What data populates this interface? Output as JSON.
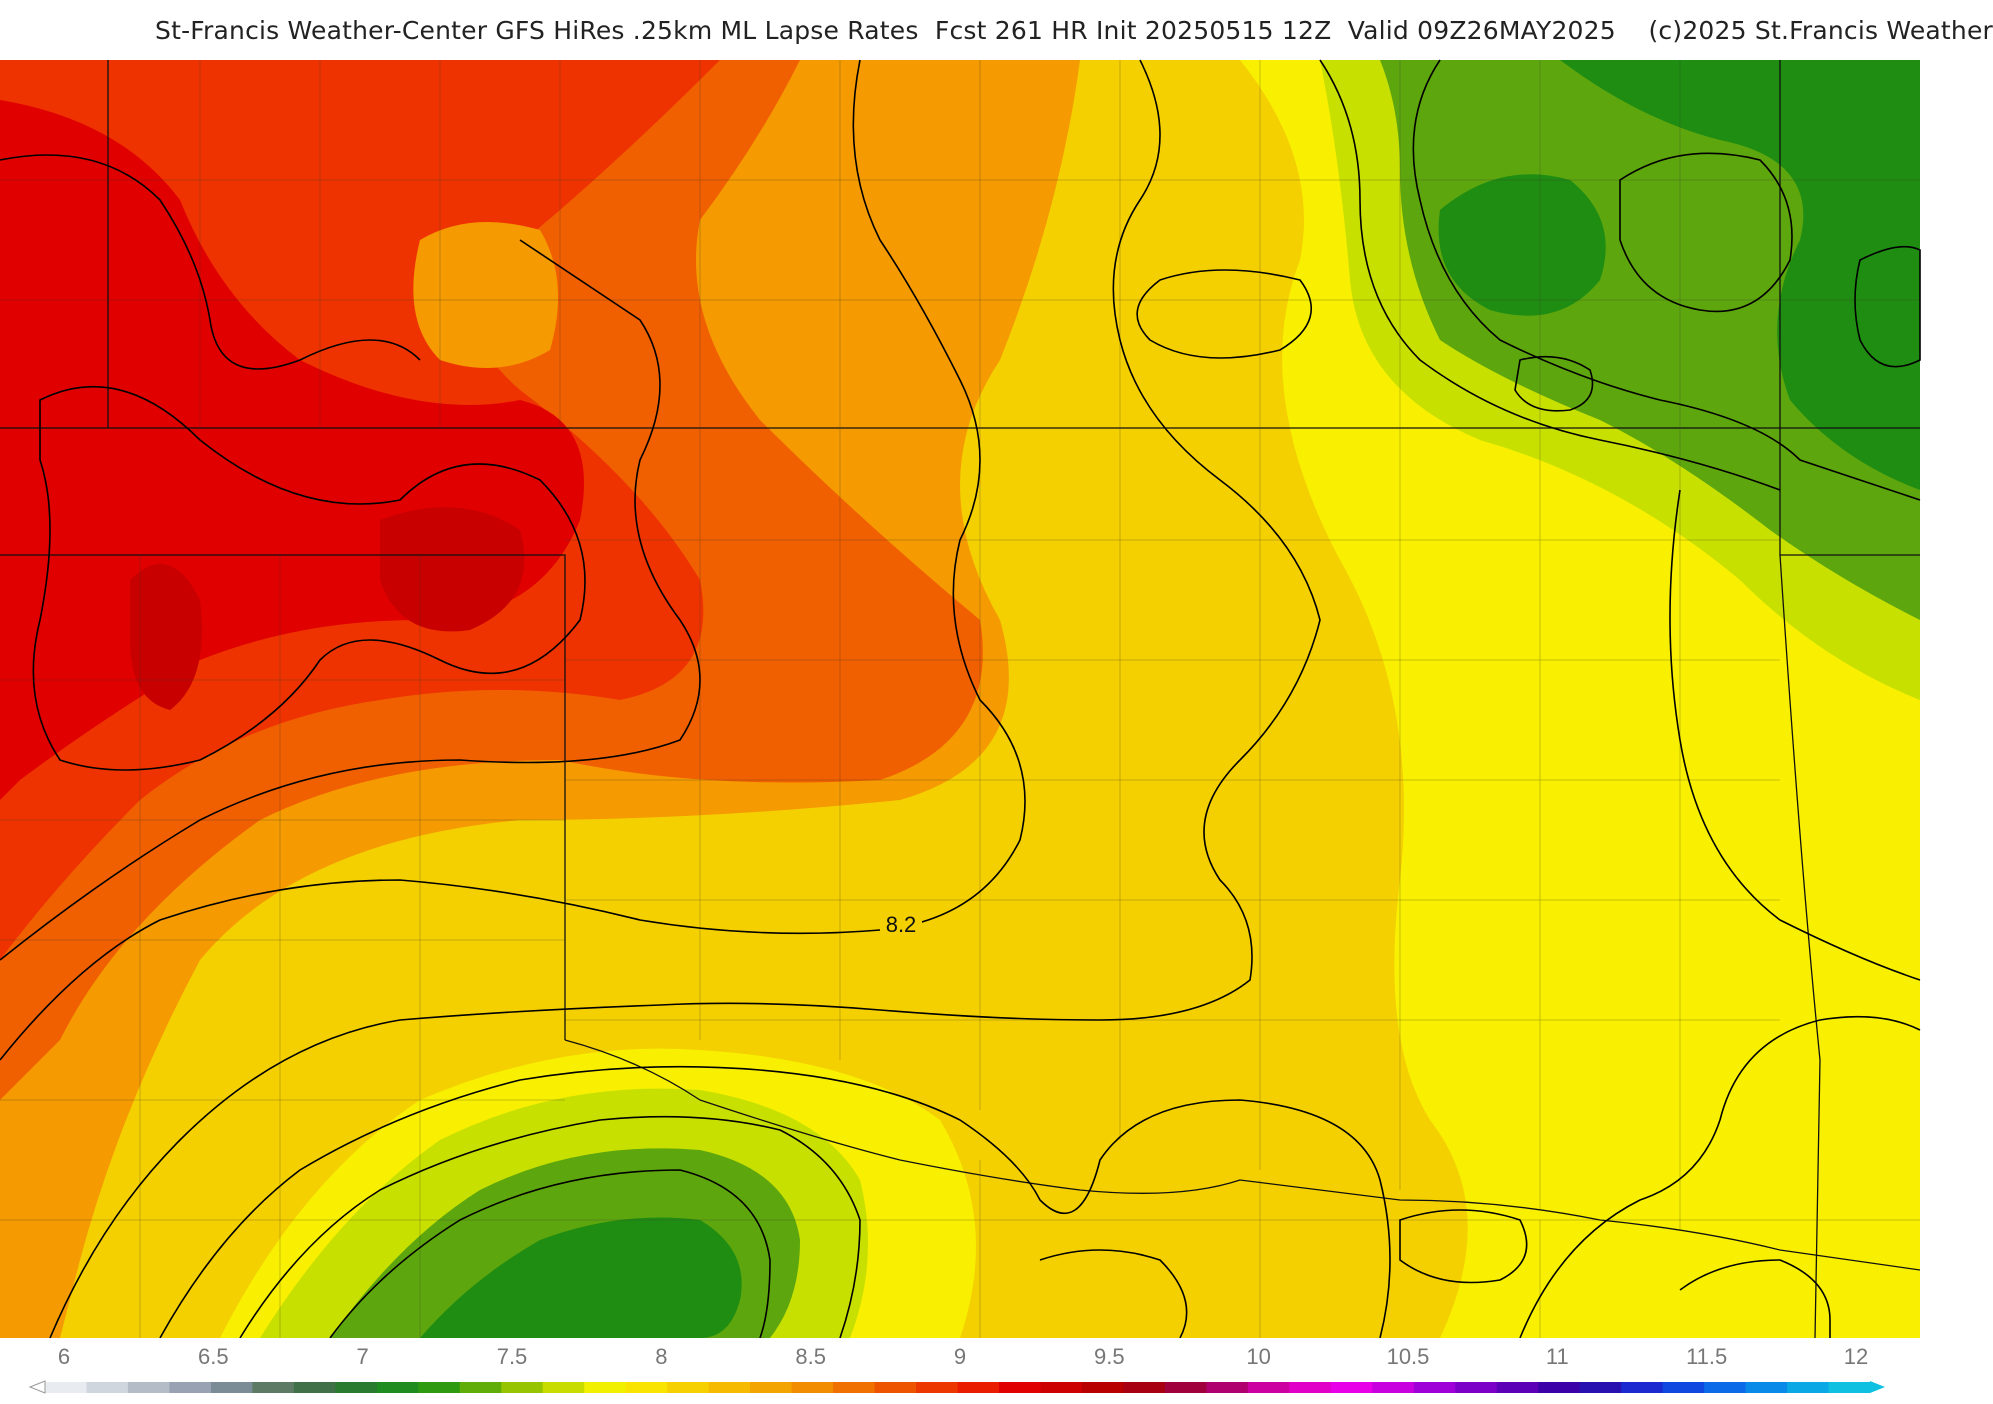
{
  "header": {
    "title": "St-Francis Weather-Center GFS HiRes .25km ML Lapse Rates  Fcst 261 HR Init 20250515 12Z  Valid 09Z26MAY2025    (c)2025 St.Francis Weather"
  },
  "map": {
    "contour_label": "8.2",
    "colors": {
      "lowest": "#2f7a1f",
      "low_green": "#1f8d12",
      "mid_green": "#5da60e",
      "yellow_green": "#c8e000",
      "yellow": "#f8f000",
      "gold": "#f4d000",
      "orange": "#f59a00",
      "dark_orange": "#f06000",
      "red_orange": "#ee3300",
      "red": "#e00000",
      "dark_red": "#c80000"
    }
  },
  "legend": {
    "ticks": [
      "6",
      "6.5",
      "7",
      "7.5",
      "8",
      "8.5",
      "9",
      "9.5",
      "10",
      "10.5",
      "11",
      "11.5",
      "12"
    ],
    "bins": [
      "#e8ecf0",
      "#d0d6de",
      "#b4bcc8",
      "#98a2b2",
      "#7c8c96",
      "#5d7a64",
      "#3f7048",
      "#2a7a30",
      "#1e8c1e",
      "#2e9a10",
      "#60ac08",
      "#96c400",
      "#c8dc00",
      "#f0f000",
      "#f8e400",
      "#f6d000",
      "#f6bb00",
      "#f4a400",
      "#f28c00",
      "#f07000",
      "#ee5400",
      "#ec3800",
      "#ea1c00",
      "#e00000",
      "#cc0000",
      "#b80000",
      "#a80010",
      "#a0003c",
      "#b00070",
      "#cc00a0",
      "#e000c8",
      "#e800e8",
      "#c800e0",
      "#a000d8",
      "#7c00c8",
      "#5c00b8",
      "#3c00a8",
      "#2810b0",
      "#1a2ad0",
      "#0e48e0",
      "#0a6ae8",
      "#0a8ae8",
      "#0aa8e4",
      "#10c0e0"
    ]
  }
}
